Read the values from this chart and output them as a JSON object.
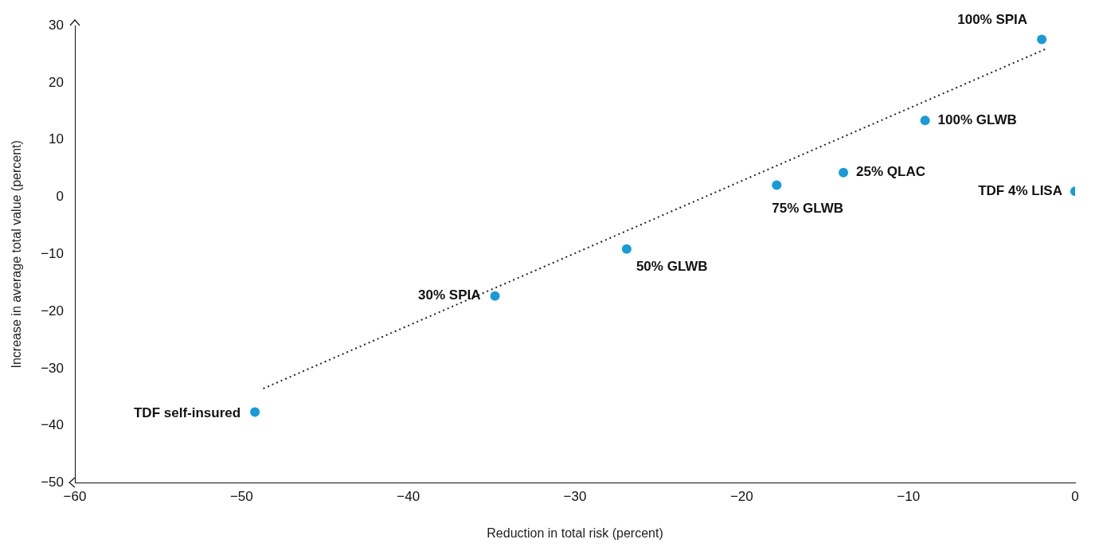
{
  "chart_data": {
    "type": "scatter",
    "xlabel": "Reduction in total risk (percent)",
    "ylabel": "Increase in average total value (percent)",
    "xlim": [
      -60,
      0
    ],
    "ylim": [
      -50,
      30
    ],
    "xticks": [
      {
        "value": -60,
        "label": "−60"
      },
      {
        "value": -50,
        "label": "−50"
      },
      {
        "value": -40,
        "label": "−40"
      },
      {
        "value": -30,
        "label": "−30"
      },
      {
        "value": -20,
        "label": "−20"
      },
      {
        "value": -10,
        "label": "−10"
      },
      0
    ],
    "yticks": [
      {
        "value": -50,
        "label": "−50"
      },
      {
        "value": -40,
        "label": "−40"
      },
      {
        "value": -30,
        "label": "−30"
      },
      {
        "value": -20,
        "label": "−20"
      },
      {
        "value": -10,
        "label": "−10"
      },
      0,
      10,
      20,
      30
    ],
    "grid": false,
    "legend": false,
    "series": [
      {
        "type": "line",
        "color": "#222222",
        "line_style": "dotted",
        "marker": "none",
        "x": [
          -48.7,
          -1.7
        ],
        "values": [
          -33.5,
          26.0
        ]
      },
      {
        "type": "scatter",
        "color": "#1a9ad6",
        "marker": "circle",
        "x": [
          -49.2,
          -34.8,
          -26.9,
          -17.9,
          -13.9,
          -9.0,
          -2.0,
          0.0
        ],
        "values": [
          -37.6,
          -17.3,
          -9.1,
          2.1,
          4.3,
          13.4,
          27.6,
          1.0
        ]
      }
    ],
    "annotations": [
      {
        "text": "TDF self-insured",
        "x": -49.2,
        "y": -37.6
      },
      {
        "text": "30% SPIA",
        "x": -34.8,
        "y": -17.3
      },
      {
        "text": "50% GLWB",
        "x": -26.9,
        "y": -9.1
      },
      {
        "text": "75% GLWB",
        "x": -17.9,
        "y": 2.1
      },
      {
        "text": "25% QLAC",
        "x": -13.9,
        "y": 4.3
      },
      {
        "text": "100% GLWB",
        "x": -9.0,
        "y": 13.4
      },
      {
        "text": "100% SPIA",
        "x": -2.0,
        "y": 27.6
      },
      {
        "text": "TDF 4% LISA",
        "x": 0.0,
        "y": 1.0
      }
    ]
  }
}
